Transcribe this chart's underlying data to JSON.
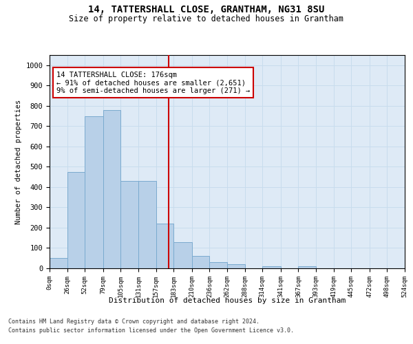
{
  "title": "14, TATTERSHALL CLOSE, GRANTHAM, NG31 8SU",
  "subtitle": "Size of property relative to detached houses in Grantham",
  "xlabel": "Distribution of detached houses by size in Grantham",
  "ylabel": "Number of detached properties",
  "bin_edges": [
    0,
    26,
    52,
    79,
    105,
    131,
    157,
    183,
    210,
    236,
    262,
    288,
    314,
    341,
    367,
    393,
    419,
    445,
    472,
    498,
    524
  ],
  "bar_heights": [
    50,
    475,
    750,
    780,
    430,
    430,
    220,
    130,
    60,
    30,
    20,
    0,
    10,
    0,
    10,
    0,
    0,
    0,
    0,
    0
  ],
  "bar_color": "#b8d0e8",
  "bar_edgecolor": "#7aaacf",
  "grid_color": "#c8dced",
  "background_color": "#deeaf6",
  "vline_x": 176,
  "vline_color": "#cc0000",
  "annotation_text": "14 TATTERSHALL CLOSE: 176sqm\n← 91% of detached houses are smaller (2,651)\n9% of semi-detached houses are larger (271) →",
  "annotation_box_color": "#cc0000",
  "ylim": [
    0,
    1050
  ],
  "yticks": [
    0,
    100,
    200,
    300,
    400,
    500,
    600,
    700,
    800,
    900,
    1000
  ],
  "tick_labels": [
    "0sqm",
    "26sqm",
    "52sqm",
    "79sqm",
    "105sqm",
    "131sqm",
    "157sqm",
    "183sqm",
    "210sqm",
    "236sqm",
    "262sqm",
    "288sqm",
    "314sqm",
    "341sqm",
    "367sqm",
    "393sqm",
    "419sqm",
    "445sqm",
    "472sqm",
    "498sqm",
    "524sqm"
  ],
  "footnote1": "Contains HM Land Registry data © Crown copyright and database right 2024.",
  "footnote2": "Contains public sector information licensed under the Open Government Licence v3.0."
}
